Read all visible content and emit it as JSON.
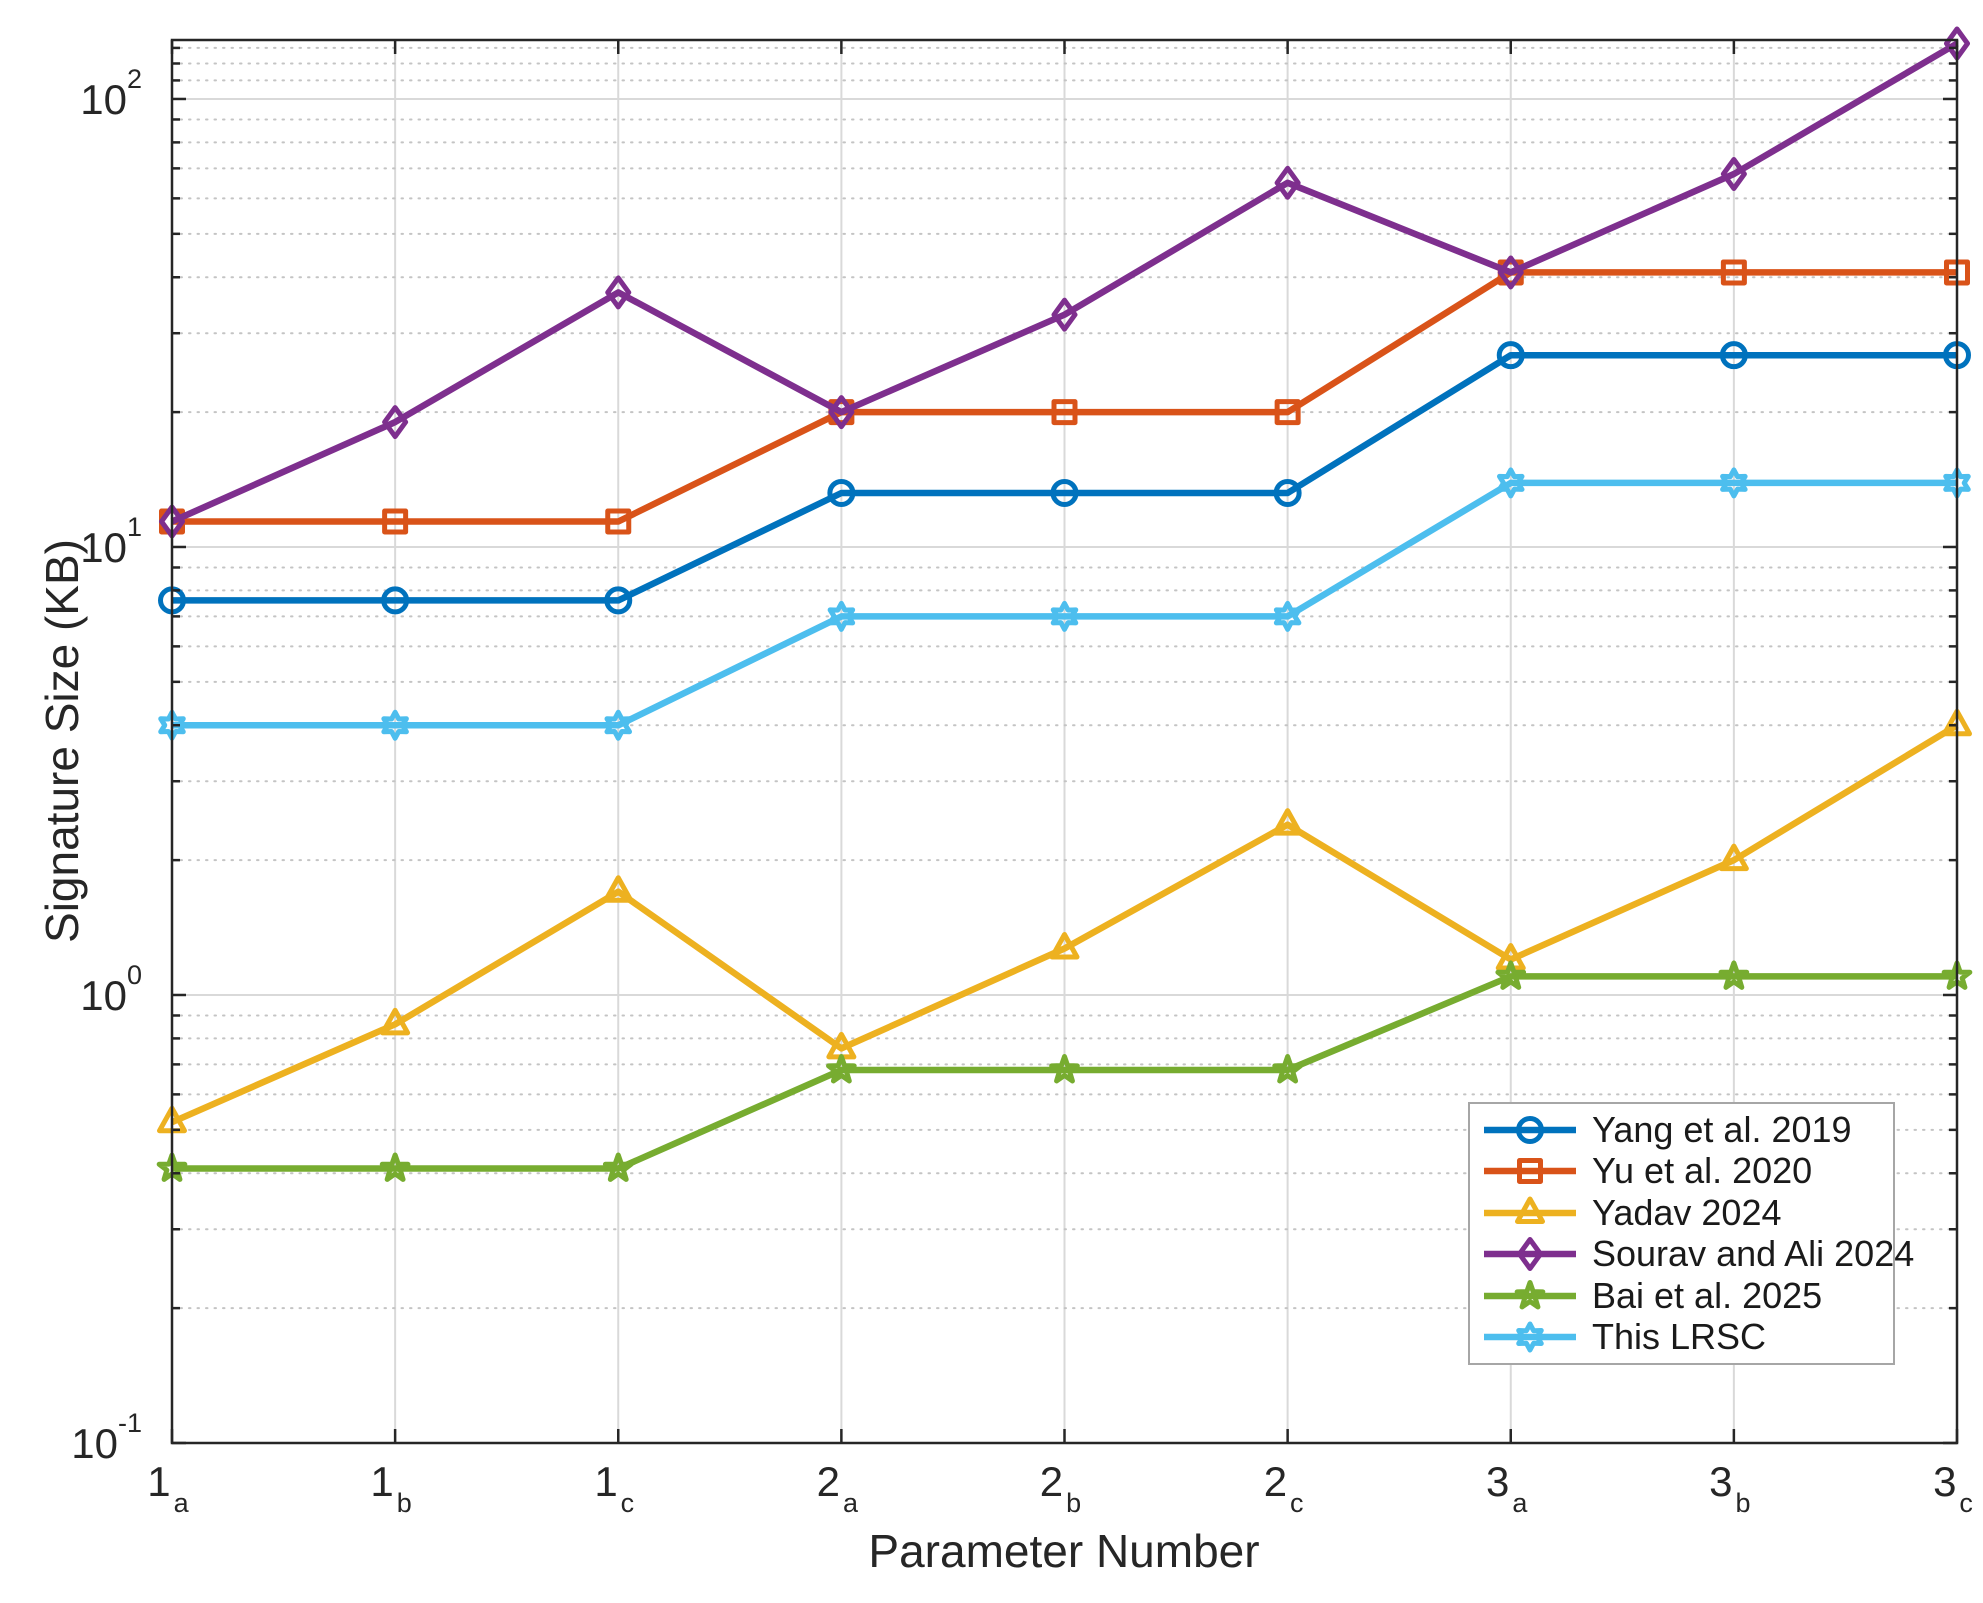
{
  "chart_data": {
    "type": "line",
    "title": "",
    "xlabel": "Parameter Number",
    "ylabel": "Signature Size (KB)",
    "yscale": "log",
    "ylim": [
      0.1,
      135.4
    ],
    "grid": {
      "major": true,
      "minor_dotted": true
    },
    "legend_position": "lower right",
    "x_tick_labels": [
      {
        "main": "1",
        "sub": "a"
      },
      {
        "main": "1",
        "sub": "b"
      },
      {
        "main": "1",
        "sub": "c"
      },
      {
        "main": "2",
        "sub": "a"
      },
      {
        "main": "2",
        "sub": "b"
      },
      {
        "main": "2",
        "sub": "c"
      },
      {
        "main": "3",
        "sub": "a"
      },
      {
        "main": "3",
        "sub": "b"
      },
      {
        "main": "3",
        "sub": "c"
      }
    ],
    "y_ticks": [
      {
        "value": 0.1,
        "main": "10",
        "exp": "-1"
      },
      {
        "value": 1,
        "main": "10",
        "exp": "0"
      },
      {
        "value": 10,
        "main": "10",
        "exp": "1"
      },
      {
        "value": 100,
        "main": "10",
        "exp": "2"
      }
    ],
    "series": [
      {
        "name": "Yang et al. 2019",
        "color": "#0072BD",
        "marker": "circle",
        "values": [
          7.6,
          7.6,
          7.6,
          13.2,
          13.2,
          13.2,
          26.8,
          26.8,
          26.8
        ]
      },
      {
        "name": "Yu et al. 2020",
        "color": "#D95319",
        "marker": "square",
        "values": [
          11.4,
          11.4,
          11.4,
          20,
          20,
          20,
          41,
          41,
          41
        ]
      },
      {
        "name": "Yadav 2024",
        "color": "#EDB120",
        "marker": "triangle",
        "values": [
          0.52,
          0.86,
          1.7,
          0.76,
          1.27,
          2.4,
          1.2,
          2.0,
          4.0
        ]
      },
      {
        "name": "Sourav and Ali 2024",
        "color": "#7E2F8E",
        "marker": "diamond",
        "values": [
          11.4,
          19,
          37,
          20,
          33,
          65,
          41,
          68,
          133
        ]
      },
      {
        "name": "Bai et al. 2025",
        "color": "#77AC30",
        "marker": "pentagram",
        "values": [
          0.41,
          0.41,
          0.41,
          0.68,
          0.68,
          0.68,
          1.1,
          1.1,
          1.1
        ]
      },
      {
        "name": "This LRSC",
        "color": "#4DBEEE",
        "marker": "hexagram",
        "values": [
          4.0,
          4.0,
          4.0,
          7.0,
          7.0,
          7.0,
          13.9,
          13.9,
          13.9
        ]
      }
    ]
  }
}
